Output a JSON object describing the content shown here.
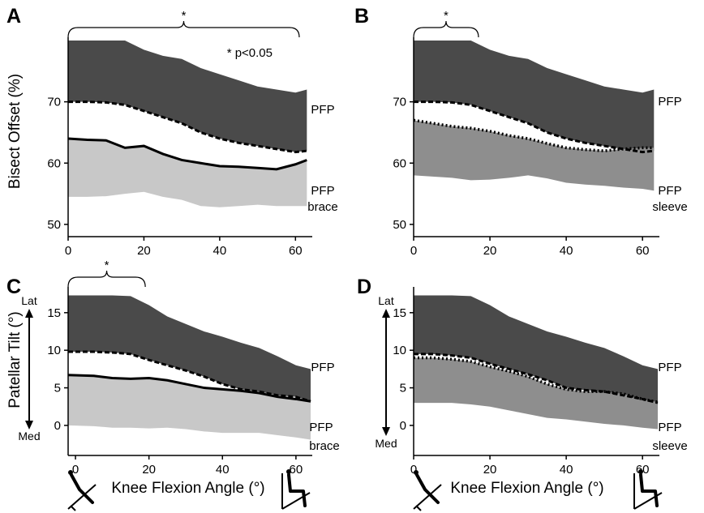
{
  "figure": {
    "significance_note": "* p<0.05",
    "xaxis_title_bottom": "Knee Flexion Angle (°)"
  },
  "chart_data": [
    {
      "panel": "A",
      "type": "area",
      "ylabel": "Bisect Offset (%)",
      "xlabel": "",
      "xlim": [
        0,
        64
      ],
      "ylim": [
        48,
        80
      ],
      "xticks": [
        0,
        20,
        40,
        60
      ],
      "yticks": [
        50,
        60,
        70
      ],
      "significance": {
        "x_range": [
          0,
          61
        ],
        "label": "*"
      },
      "series": [
        {
          "name": "PFP",
          "style": "dashed",
          "band": "dark",
          "x": [
            0,
            5,
            10,
            15,
            20,
            25,
            30,
            35,
            40,
            45,
            50,
            55,
            60,
            63
          ],
          "mean": [
            70,
            70,
            69.9,
            69.5,
            68.5,
            67.5,
            66.5,
            65,
            64,
            63.3,
            62.8,
            62.3,
            61.8,
            62
          ],
          "upper": [
            80,
            80,
            80,
            80,
            78.5,
            77.5,
            77,
            75.5,
            74.5,
            73.5,
            72.5,
            72,
            71.5,
            72
          ],
          "lower": [
            70,
            70,
            69.9,
            69.5,
            68.5,
            67.5,
            66.5,
            65,
            64,
            63.3,
            62.8,
            62.3,
            61.8,
            62
          ]
        },
        {
          "name": "PFP brace",
          "style": "solid",
          "band": "light",
          "x": [
            0,
            5,
            10,
            15,
            20,
            25,
            30,
            35,
            40,
            45,
            50,
            55,
            60,
            63
          ],
          "mean": [
            64,
            63.8,
            63.7,
            62.5,
            62.8,
            61.5,
            60.5,
            60,
            59.5,
            59.4,
            59.2,
            59,
            59.8,
            60.5
          ],
          "upper": [
            64,
            63.8,
            63.7,
            62.5,
            62.8,
            61.5,
            60.5,
            60,
            59.5,
            59.4,
            59.2,
            59,
            59.8,
            60.5
          ],
          "lower": [
            54.5,
            54.5,
            54.6,
            55,
            55.3,
            54.5,
            54,
            53,
            52.8,
            53,
            53.2,
            53,
            53,
            53
          ]
        }
      ]
    },
    {
      "panel": "B",
      "type": "area",
      "ylabel": "",
      "xlabel": "",
      "xlim": [
        0,
        64
      ],
      "ylim": [
        48,
        80
      ],
      "xticks": [
        0,
        20,
        40,
        60
      ],
      "yticks": [
        50,
        60,
        70
      ],
      "significance": {
        "x_range": [
          0,
          17
        ],
        "label": "*"
      },
      "series": [
        {
          "name": "PFP",
          "style": "dashed",
          "band": "dark",
          "x": [
            0,
            5,
            10,
            15,
            20,
            25,
            30,
            35,
            40,
            45,
            50,
            55,
            60,
            63
          ],
          "mean": [
            70,
            70,
            69.9,
            69.5,
            68.5,
            67.5,
            66.5,
            65,
            64,
            63.3,
            62.8,
            62.3,
            61.8,
            62
          ],
          "upper": [
            80,
            80,
            80,
            80,
            78.5,
            77.5,
            77,
            75.5,
            74.5,
            73.5,
            72.5,
            72,
            71.5,
            72
          ],
          "lower": [
            70,
            70,
            69.9,
            69.5,
            68.5,
            67.5,
            66.5,
            65,
            64,
            63.3,
            62.8,
            62.3,
            61.8,
            62
          ]
        },
        {
          "name": "PFP sleeve",
          "style": "dotted",
          "band": "medium",
          "x": [
            0,
            5,
            10,
            15,
            20,
            25,
            30,
            35,
            40,
            45,
            50,
            55,
            60,
            63
          ],
          "mean": [
            67,
            66.5,
            66,
            65.7,
            65.2,
            64.5,
            64,
            63.2,
            62.5,
            62.2,
            62,
            62.3,
            62.5,
            62.5
          ],
          "upper": [
            67,
            66.5,
            66,
            65.7,
            65.2,
            64.5,
            64,
            63.2,
            62.5,
            62.2,
            62,
            62.3,
            62.5,
            62.5
          ],
          "lower": [
            58,
            57.8,
            57.6,
            57.2,
            57.3,
            57.6,
            58,
            57.5,
            56.8,
            56.5,
            56.3,
            56,
            55.8,
            55.5
          ]
        }
      ]
    },
    {
      "panel": "C",
      "type": "area",
      "ylabel": "Patellar Tilt (°)",
      "xlabel": "",
      "xlim": [
        -2,
        64
      ],
      "ylim": [
        -4,
        18
      ],
      "xticks": [
        0,
        20,
        40,
        60
      ],
      "yticks": [
        0,
        5,
        10,
        15
      ],
      "axis_direction": {
        "top": "Lat",
        "bottom": "Med"
      },
      "significance": {
        "x_range": [
          -2,
          19
        ],
        "label": "*"
      },
      "series": [
        {
          "name": "PFP",
          "style": "dashed",
          "band": "dark",
          "x": [
            -2,
            5,
            10,
            15,
            20,
            25,
            30,
            35,
            40,
            45,
            50,
            55,
            60,
            64
          ],
          "mean": [
            9.8,
            9.8,
            9.7,
            9.5,
            8.7,
            8,
            7.3,
            6.5,
            5.5,
            4.8,
            4.5,
            4,
            3.8,
            3.2
          ],
          "upper": [
            17.3,
            17.3,
            17.3,
            17.2,
            16,
            14.5,
            13.5,
            12.5,
            11.8,
            11,
            10.3,
            9.2,
            8,
            7.5
          ],
          "lower": [
            9.8,
            9.8,
            9.7,
            9.5,
            8.7,
            8,
            7.3,
            6.5,
            5.5,
            4.8,
            4.5,
            4,
            3.8,
            3.2
          ]
        },
        {
          "name": "PFP brace",
          "style": "solid",
          "band": "light",
          "x": [
            -2,
            5,
            10,
            15,
            20,
            25,
            30,
            35,
            40,
            45,
            50,
            55,
            60,
            64
          ],
          "mean": [
            6.7,
            6.6,
            6.3,
            6.2,
            6.3,
            6,
            5.5,
            5,
            4.8,
            4.6,
            4.3,
            3.8,
            3.5,
            3.2
          ],
          "upper": [
            6.7,
            6.6,
            6.3,
            6.2,
            6.3,
            6,
            5.5,
            5,
            4.8,
            4.6,
            4.3,
            3.8,
            3.5,
            3.2
          ],
          "lower": [
            0,
            -0.1,
            -0.3,
            -0.3,
            -0.4,
            -0.3,
            -0.5,
            -0.8,
            -1,
            -1,
            -1,
            -1.3,
            -1.6,
            -1.9
          ]
        }
      ]
    },
    {
      "panel": "D",
      "type": "area",
      "ylabel": "",
      "xlabel": "",
      "xlim": [
        0,
        64
      ],
      "ylim": [
        -4,
        18
      ],
      "xticks": [
        0,
        20,
        40,
        60
      ],
      "yticks": [
        0,
        5,
        10,
        15
      ],
      "axis_direction": {
        "top": "Lat",
        "bottom": "Med"
      },
      "series": [
        {
          "name": "PFP",
          "style": "dashed",
          "band": "dark",
          "x": [
            0,
            5,
            10,
            15,
            20,
            25,
            30,
            35,
            40,
            45,
            50,
            55,
            60,
            64
          ],
          "mean": [
            9.5,
            9.5,
            9.3,
            9,
            8.2,
            7.5,
            6.8,
            6,
            5,
            4.7,
            4.5,
            4,
            3.5,
            3
          ],
          "upper": [
            17.3,
            17.3,
            17.3,
            17.2,
            16,
            14.5,
            13.5,
            12.5,
            11.8,
            11,
            10.3,
            9.2,
            8,
            7.5
          ],
          "lower": [
            9.5,
            9.5,
            9.3,
            9,
            8.2,
            7.5,
            6.8,
            6,
            5,
            4.7,
            4.5,
            4,
            3.5,
            3
          ]
        },
        {
          "name": "PFP sleeve",
          "style": "dotted",
          "band": "medium",
          "x": [
            0,
            5,
            10,
            15,
            20,
            25,
            30,
            35,
            40,
            45,
            50,
            55,
            60,
            64
          ],
          "mean": [
            9,
            9,
            8.8,
            8.5,
            7.8,
            7.2,
            6.5,
            5.5,
            4.8,
            4.5,
            4.5,
            4.2,
            3.5,
            3.1
          ],
          "upper": [
            9,
            9,
            8.8,
            8.5,
            7.8,
            7.2,
            6.5,
            5.5,
            4.8,
            4.5,
            4.5,
            4.2,
            3.5,
            3.1
          ],
          "lower": [
            3,
            3,
            3,
            2.8,
            2.5,
            2,
            1.5,
            1,
            0.8,
            0.5,
            0.2,
            0,
            -0.3,
            -0.5
          ]
        }
      ]
    }
  ],
  "colors": {
    "band_dark": "#4a4a4a",
    "band_light": "#c8c8c8",
    "band_medium": "#8e8e8e",
    "line": "#000000"
  },
  "icons": [
    "knee-extended-icon",
    "knee-flexed-icon"
  ]
}
